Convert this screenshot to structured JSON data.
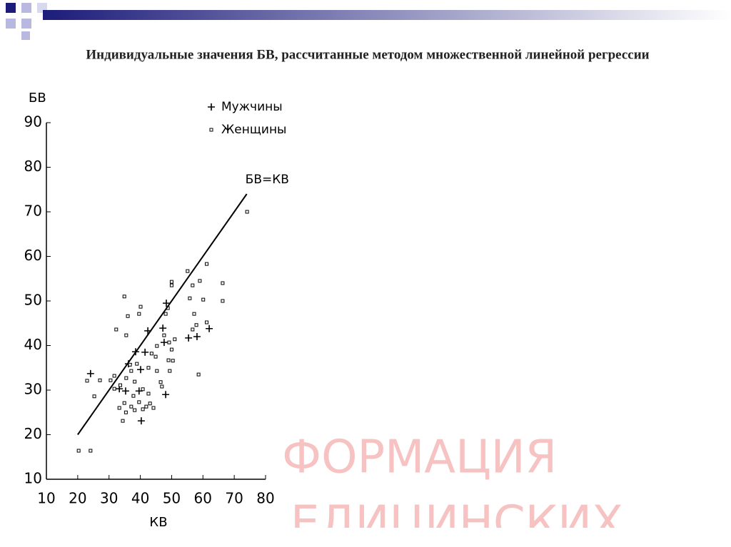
{
  "chart_data": {
    "type": "scatter",
    "title": "Индивидуальные значения БВ, рассчитанные методом множественной линейной регрессии",
    "x_label": "КВ",
    "y_label": "БВ",
    "xlim": [
      10,
      80
    ],
    "xticks": [
      10,
      20,
      30,
      40,
      50,
      60,
      70,
      80
    ],
    "ylim": [
      10,
      90
    ],
    "yticks": [
      10,
      20,
      30,
      40,
      50,
      60,
      70,
      80,
      90
    ],
    "legend": "top",
    "series": [
      {
        "name": "Мужчины",
        "marker": "plus",
        "color": "#000000",
        "x": [
          24.1,
          33.3,
          36.2,
          38.5,
          41.5,
          42.4,
          40.1,
          40.3,
          39.6,
          47.2,
          47.6,
          48.3,
          48.1,
          55.4,
          58.1,
          62.0,
          35.3
        ],
        "y": [
          33.7,
          30.3,
          35.9,
          38.6,
          38.5,
          43.3,
          34.6,
          23.1,
          29.8,
          43.9,
          40.7,
          49.5,
          29.0,
          41.7,
          42.0,
          43.8,
          29.8
        ]
      },
      {
        "name": "Женщины",
        "marker": "square",
        "color": "#000000",
        "x": [
          20.3,
          24.1,
          25.3,
          23.0,
          27.1,
          30.5,
          31.7,
          32.3,
          34.9,
          36.0,
          35.5,
          34.4,
          33.3,
          34.9,
          35.4,
          37.1,
          38.2,
          39.6,
          40.8,
          41.9,
          43.1,
          44.2,
          42.6,
          40.8,
          38.2,
          37.1,
          38.9,
          39.6,
          40.1,
          42.6,
          43.6,
          44.9,
          45.3,
          46.5,
          46.9,
          48.1,
          48.8,
          50.0,
          50.0,
          49.2,
          50.0,
          51.0,
          49.4,
          49.0,
          50.4,
          55.1,
          55.8,
          56.7,
          59.0,
          60.1,
          61.2,
          57.2,
          57.9,
          58.6,
          61.2,
          56.7,
          66.3,
          66.3,
          74.1,
          35.5,
          36.7,
          33.6,
          31.7,
          37.8,
          45.3,
          47.6
        ],
        "y": [
          16.4,
          16.4,
          28.6,
          32.1,
          32.2,
          32.2,
          33.2,
          43.6,
          51.0,
          46.6,
          42.3,
          23.1,
          26.0,
          27.1,
          25.0,
          26.3,
          25.5,
          27.3,
          25.7,
          26.3,
          27.0,
          26.0,
          29.2,
          30.2,
          31.9,
          34.3,
          35.9,
          47.1,
          48.7,
          35.0,
          38.2,
          37.5,
          34.3,
          31.8,
          30.8,
          47.1,
          48.4,
          54.3,
          53.5,
          40.7,
          39.1,
          41.4,
          34.3,
          36.7,
          36.6,
          56.7,
          50.6,
          53.5,
          54.5,
          50.3,
          58.3,
          47.1,
          44.6,
          33.5,
          45.2,
          43.6,
          54.0,
          50.0,
          70.0,
          32.7,
          35.7,
          31.1,
          30.3,
          28.7,
          39.9,
          42.3
        ]
      },
      {
        "name": "БВ=КВ",
        "marker": "line",
        "color": "#000000",
        "x": [
          20,
          74
        ],
        "y": [
          20,
          74
        ]
      }
    ]
  },
  "watermark": [
    "ФОРМАЦИЯ",
    "ЕДИЦИНСКИХ"
  ]
}
